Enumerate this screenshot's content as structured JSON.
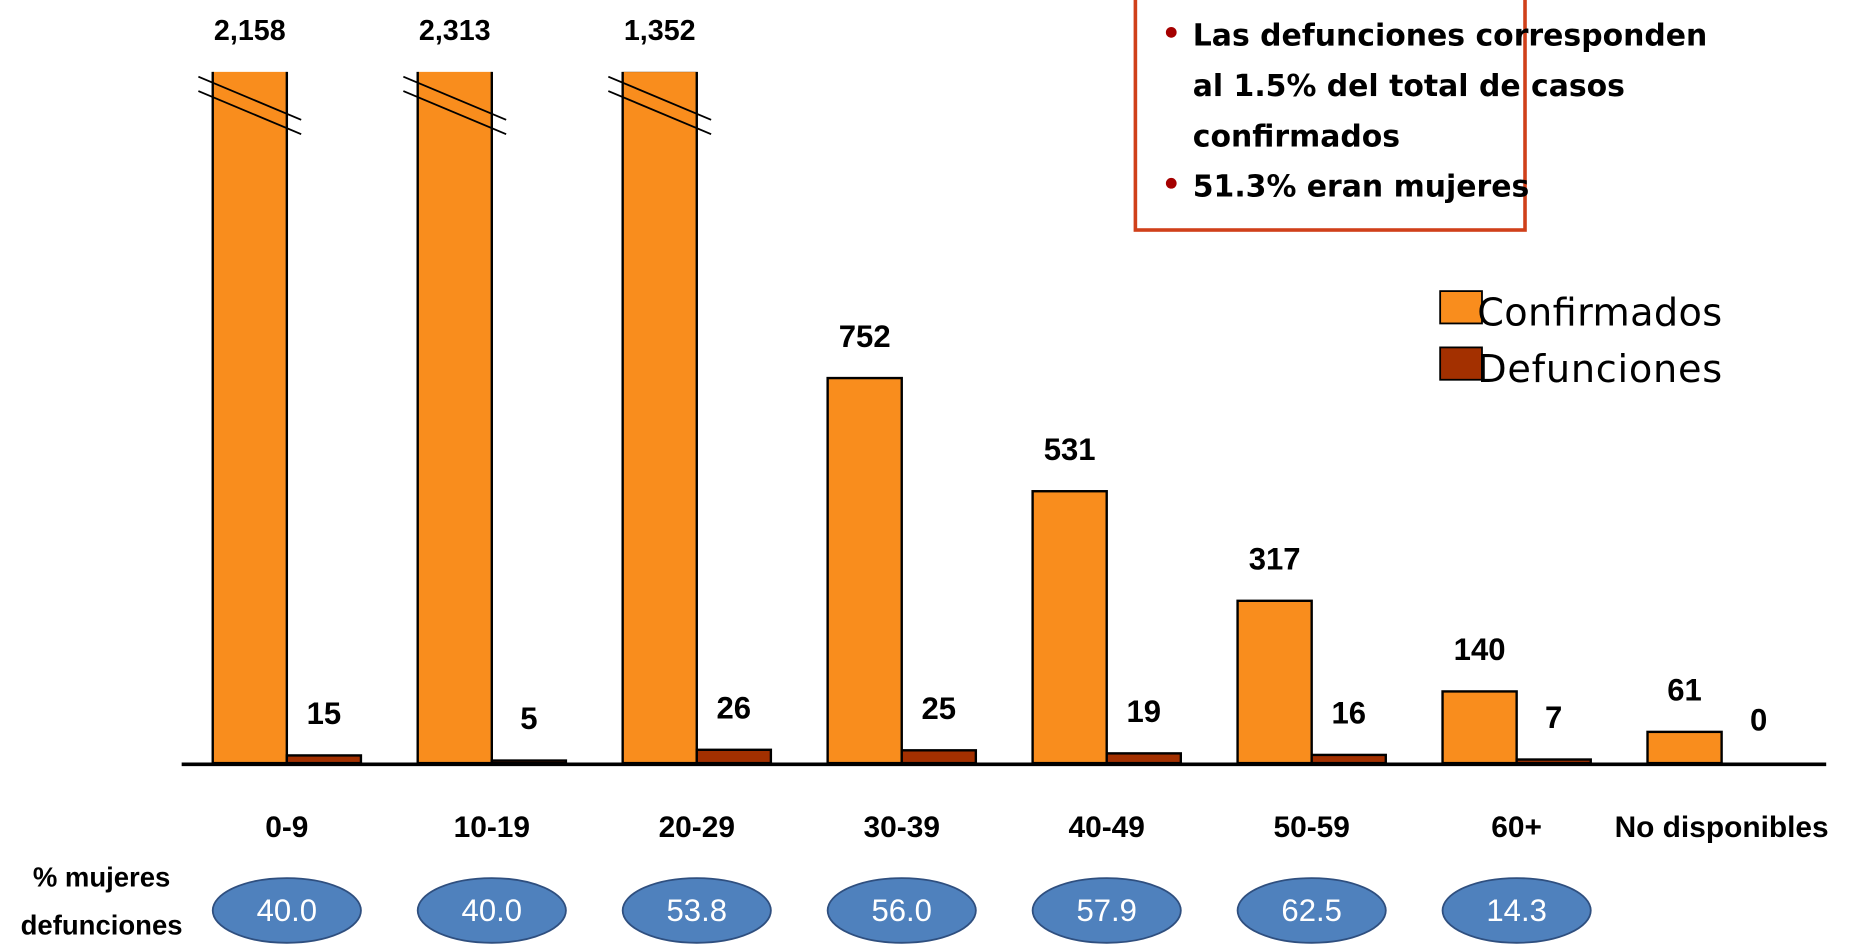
{
  "chart_data": {
    "type": "bar",
    "categories": [
      "0-9",
      "10-19",
      "20-29",
      "30-39",
      "40-49",
      "50-59",
      "60+",
      "No disponibles"
    ],
    "series": [
      {
        "name": "Confirmados",
        "color": "#f98d1d",
        "values": [
          2158,
          2313,
          1352,
          752,
          531,
          317,
          140,
          61
        ],
        "value_labels": [
          "2,158",
          "2,313",
          "1,352",
          "752",
          "531",
          "317",
          "140",
          "61"
        ]
      },
      {
        "name": "Defunciones",
        "color": "#a33000",
        "values": [
          15,
          5,
          26,
          25,
          19,
          16,
          7,
          0
        ]
      }
    ],
    "ylim": [
      0,
      1350
    ],
    "axis_break": true,
    "legend": "upper right",
    "pct_row": {
      "label_lines": [
        "% mujeres",
        "defunciones"
      ],
      "color": "#4f81bd",
      "values": [
        40,
        40,
        53.8,
        56,
        57.9,
        62.5,
        14.3
      ],
      "value_labels": [
        "40.0",
        "40.0",
        "53.8",
        "56.0",
        "57.9",
        "62.5",
        "14.3"
      ]
    },
    "annotation": {
      "bullets": [
        {
          "lines": [
            "Las defunciones corresponden",
            "al 1.5% del total de casos",
            "confirmados"
          ]
        },
        {
          "lines": [
            "51.3% eran mujeres"
          ]
        }
      ]
    }
  }
}
